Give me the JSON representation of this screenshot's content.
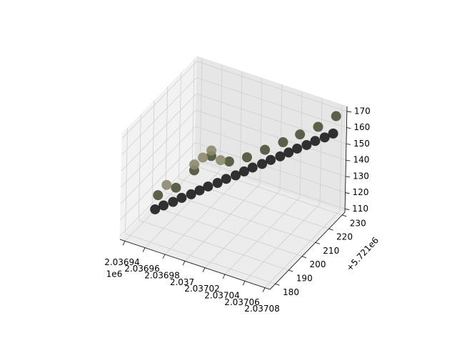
{
  "chart_data": {
    "type": "scatter3d",
    "x_offset_label": "1e6",
    "y_offset_label": "+5.721e6",
    "xlim": [
      2.036935,
      2.037085
    ],
    "ylim": [
      176,
      232
    ],
    "zlim": [
      108,
      173
    ],
    "xticks": [
      2.03694,
      2.03696,
      2.03698,
      2.037,
      2.03702,
      2.03704,
      2.03706,
      2.03708
    ],
    "yticks": [
      180,
      190,
      200,
      210,
      220,
      230
    ],
    "zticks": [
      110,
      120,
      130,
      140,
      150,
      160,
      170
    ],
    "grid": true,
    "series": [
      {
        "color": "#4b5136",
        "x": [
          2.03695,
          2.036963,
          2.036976,
          2.036988,
          2.037001,
          2.037014,
          2.037027,
          2.03704,
          2.037052,
          2.037065,
          2.037078
        ],
        "y": [
          192.8,
          196.4,
          200.1,
          203.7,
          207.4,
          211.0,
          214.6,
          218.3,
          221.9,
          225.6,
          229.2
        ],
        "z": [
          124,
          128.2,
          138.4,
          146.6,
          142.8,
          145,
          149.2,
          153.4,
          157.6,
          161.8,
          168
        ]
      },
      {
        "color": "#8c8a6e",
        "x": [
          2.036956,
          2.036976,
          2.036982,
          2.036988,
          2.036995
        ],
        "y": [
          194.6,
          200.1,
          201.9,
          203.7,
          205.5
        ],
        "z": [
          130,
          142,
          146,
          150,
          144
        ]
      },
      {
        "color": "#1c1c1c",
        "x": [
          2.03695,
          2.036956,
          2.036963,
          2.036969,
          2.036976,
          2.036982,
          2.036988,
          2.036995,
          2.037001,
          2.037008,
          2.037014,
          2.03702,
          2.037027,
          2.037033,
          2.03704,
          2.037046,
          2.037052,
          2.037059,
          2.037065,
          2.037072,
          2.037078
        ],
        "y": [
          190.8,
          192.6,
          194.4,
          196.3,
          198.1,
          199.9,
          201.7,
          203.5,
          205.4,
          207.2,
          209.0,
          210.8,
          212.6,
          214.5,
          216.3,
          218.1,
          219.9,
          221.7,
          223.6,
          225.4,
          227.2
        ],
        "z": [
          117,
          119.1,
          121.2,
          123.3,
          125.4,
          127.5,
          129.6,
          131.7,
          133.8,
          135.9,
          138,
          140.1,
          142.2,
          144.3,
          146.4,
          148.5,
          150.6,
          152.7,
          154.8,
          156.9,
          159
        ]
      }
    ]
  }
}
